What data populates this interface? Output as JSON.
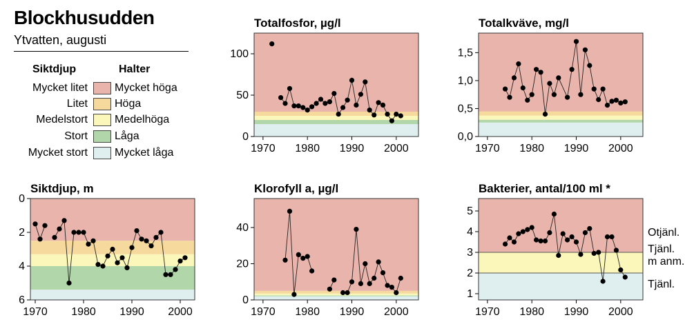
{
  "header": {
    "title": "Blockhusudden",
    "subtitle": "Ytvatten, augusti"
  },
  "legend": {
    "left_heading": "Siktdjup",
    "right_heading": "Halter",
    "rows": [
      {
        "left": "Mycket litet",
        "right": "Mycket höga",
        "color": "#e8b4ab"
      },
      {
        "left": "Litet",
        "right": "Höga",
        "color": "#f6d99c"
      },
      {
        "left": "Medelstort",
        "right": "Medelhöga",
        "color": "#fbf6b9"
      },
      {
        "left": "Stort",
        "right": "Låga",
        "color": "#b1d6a9"
      },
      {
        "left": "Mycket stort",
        "right": "Mycket låga",
        "color": "#dfeff0"
      }
    ]
  },
  "colors": {
    "very_high": "#e8b4ab",
    "high": "#f6d99c",
    "medium": "#fbf6b9",
    "low": "#b1d6a9",
    "very_low": "#dfeff0",
    "border": "#333333"
  },
  "chart_data": [
    {
      "id": "totalfosfor",
      "type": "line",
      "title": "Totalfosfor, µg/l",
      "xlim": [
        1968,
        2005
      ],
      "ylim": [
        0,
        125
      ],
      "xticks": [
        1970,
        1980,
        1990,
        2000
      ],
      "xtick_labels": [
        "1970",
        "1980",
        "1990",
        "2000"
      ],
      "yticks": [
        0,
        50,
        100
      ],
      "ytick_labels": [
        "0",
        "50",
        "100"
      ],
      "bands": [
        {
          "from": 0,
          "to": 15,
          "color": "#dfeff0"
        },
        {
          "from": 15,
          "to": 20,
          "color": "#b1d6a9"
        },
        {
          "from": 20,
          "to": 25,
          "color": "#fbf6b9"
        },
        {
          "from": 25,
          "to": 30,
          "color": "#f6d99c"
        },
        {
          "from": 30,
          "to": 125,
          "color": "#e8b4ab"
        }
      ],
      "series": [
        {
          "segments": [
            {
              "x": [
                1972
              ],
              "y": [
                112
              ]
            },
            {
              "x": [
                1974,
                1975,
                1976,
                1977,
                1978,
                1979,
                1980,
                1981,
                1982,
                1983,
                1984,
                1985,
                1986,
                1987,
                1988,
                1989,
                1990,
                1991,
                1992,
                1993,
                1994,
                1995,
                1996,
                1997,
                1998,
                1999,
                2000,
                2001
              ],
              "y": [
                47,
                40,
                58,
                37,
                37,
                35,
                32,
                36,
                40,
                45,
                40,
                42,
                52,
                27,
                35,
                44,
                68,
                38,
                51,
                66,
                32,
                26,
                41,
                38,
                27,
                19,
                27,
                25
              ]
            }
          ]
        }
      ]
    },
    {
      "id": "totalkvave",
      "type": "line",
      "title": "Totalkväve, mg/l",
      "xlim": [
        1968,
        2005
      ],
      "ylim": [
        0,
        1.85
      ],
      "xticks": [
        1970,
        1980,
        1990,
        2000
      ],
      "xtick_labels": [
        "1970",
        "1980",
        "1990",
        "2000"
      ],
      "yticks": [
        0,
        0.5,
        1.0,
        1.5
      ],
      "ytick_labels": [
        "0,0",
        "0,5",
        "1,0",
        "1,5"
      ],
      "bands": [
        {
          "from": 0,
          "to": 0.25,
          "color": "#dfeff0"
        },
        {
          "from": 0.25,
          "to": 0.3,
          "color": "#b1d6a9"
        },
        {
          "from": 0.3,
          "to": 0.375,
          "color": "#fbf6b9"
        },
        {
          "from": 0.375,
          "to": 0.45,
          "color": "#f6d99c"
        },
        {
          "from": 0.45,
          "to": 1.85,
          "color": "#e8b4ab"
        }
      ],
      "series": [
        {
          "segments": [
            {
              "x": [
                1974,
                1975,
                1976,
                1977,
                1978,
                1979,
                1980,
                1981,
                1982,
                1983,
                1984,
                1985,
                1986,
                1988,
                1989,
                1990,
                1991,
                1992,
                1993,
                1994,
                1995,
                1996,
                1997,
                1998,
                1999,
                2000,
                2001
              ],
              "y": [
                0.85,
                0.7,
                1.05,
                1.3,
                0.87,
                0.65,
                0.75,
                1.2,
                1.15,
                0.4,
                0.95,
                0.75,
                1.05,
                0.7,
                1.2,
                1.7,
                0.75,
                1.55,
                1.27,
                0.85,
                0.66,
                0.85,
                0.56,
                0.63,
                0.65,
                0.6,
                0.62
              ]
            }
          ]
        }
      ]
    },
    {
      "id": "siktdjup",
      "type": "line",
      "title": "Siktdjup, m",
      "xlim": [
        1969,
        2003
      ],
      "ylim": [
        6,
        0
      ],
      "inverted": true,
      "xticks": [
        1970,
        1980,
        1990,
        2000
      ],
      "xtick_labels": [
        "1970",
        "1980",
        "1990",
        "2000"
      ],
      "yticks": [
        0,
        2,
        4,
        6
      ],
      "ytick_labels": [
        "0",
        "2",
        "4",
        "6"
      ],
      "bands": [
        {
          "from": 0,
          "to": 2.5,
          "color": "#e8b4ab"
        },
        {
          "from": 2.5,
          "to": 3.3,
          "color": "#f6d99c"
        },
        {
          "from": 3.3,
          "to": 4.0,
          "color": "#fbf6b9"
        },
        {
          "from": 4.0,
          "to": 5.4,
          "color": "#b1d6a9"
        },
        {
          "from": 5.4,
          "to": 6,
          "color": "#dfeff0"
        }
      ],
      "series": [
        {
          "segments": [
            {
              "x": [
                1970,
                1971,
                1972
              ],
              "y": [
                1.5,
                2.4,
                1.6
              ]
            },
            {
              "x": [
                1974,
                1975,
                1976,
                1977,
                1978,
                1979,
                1980,
                1981,
                1982,
                1983,
                1984,
                1985,
                1986,
                1987,
                1988,
                1989,
                1990,
                1991,
                1992,
                1993,
                1994,
                1995,
                1996,
                1997,
                1998,
                1999,
                2000,
                2001
              ],
              "y": [
                2.3,
                1.8,
                1.3,
                5.0,
                2.0,
                2.0,
                2.0,
                2.7,
                2.5,
                3.9,
                4.0,
                3.4,
                3.0,
                3.8,
                3.5,
                4.1,
                2.9,
                1.9,
                2.4,
                2.5,
                2.8,
                2.3,
                2.0,
                4.5,
                4.5,
                4.2,
                3.7,
                3.5
              ]
            }
          ]
        }
      ]
    },
    {
      "id": "klorofyll",
      "type": "line",
      "title": "Klorofyll a, µg/l",
      "xlim": [
        1968,
        2005
      ],
      "ylim": [
        0,
        56
      ],
      "xticks": [
        1970,
        1980,
        1990,
        2000
      ],
      "xtick_labels": [
        "1970",
        "1980",
        "1990",
        "2000"
      ],
      "yticks": [
        0,
        20,
        40
      ],
      "ytick_labels": [
        "0",
        "20",
        "40"
      ],
      "bands": [
        {
          "from": 0,
          "to": 2,
          "color": "#dfeff0"
        },
        {
          "from": 2,
          "to": 2.5,
          "color": "#b1d6a9"
        },
        {
          "from": 2.5,
          "to": 3.5,
          "color": "#fbf6b9"
        },
        {
          "from": 3.5,
          "to": 5,
          "color": "#f6d99c"
        },
        {
          "from": 5,
          "to": 56,
          "color": "#e8b4ab"
        }
      ],
      "series": [
        {
          "segments": [
            {
              "x": [
                1975,
                1976,
                1977,
                1978,
                1979,
                1980,
                1981
              ],
              "y": [
                22,
                49,
                3,
                25,
                23,
                24,
                16
              ]
            },
            {
              "x": [
                1985,
                1986
              ],
              "y": [
                6,
                11
              ]
            },
            {
              "x": [
                1988,
                1989,
                1990,
                1991,
                1992,
                1993,
                1994,
                1995,
                1996,
                1997,
                1998,
                1999,
                2000,
                2001
              ],
              "y": [
                4,
                4,
                10,
                39,
                9,
                20,
                9,
                12,
                21,
                15,
                8,
                7,
                4,
                12
              ]
            }
          ]
        }
      ]
    },
    {
      "id": "bakterier",
      "type": "line",
      "title": "Bakterier, antal/100 ml *",
      "xlim": [
        1968,
        2005
      ],
      "ylim": [
        0.7,
        5.6
      ],
      "xticks": [
        1970,
        1980,
        1990,
        2000
      ],
      "xtick_labels": [
        "1970",
        "1980",
        "1990",
        "2000"
      ],
      "yticks": [
        1,
        2,
        3,
        4,
        5
      ],
      "ytick_labels": [
        "1",
        "2",
        "3",
        "4",
        "5"
      ],
      "bands": [
        {
          "from": 0.7,
          "to": 2,
          "color": "#dfeff0"
        },
        {
          "from": 2,
          "to": 3,
          "color": "#fbf6b9"
        },
        {
          "from": 3,
          "to": 5.6,
          "color": "#e8b4ab"
        }
      ],
      "band_lines": [
        2,
        3
      ],
      "side_labels": [
        {
          "text": "Otjänl.",
          "y": 4.0
        },
        {
          "text": "Tjänl.",
          "y": 3.2
        },
        {
          "text": "m anm.",
          "y": 2.6
        },
        {
          "text": "Tjänl.",
          "y": 1.5
        }
      ],
      "series": [
        {
          "segments": [
            {
              "x": [
                1974,
                1975,
                1976,
                1977,
                1978,
                1979,
                1980,
                1981,
                1982,
                1983,
                1984,
                1985,
                1986,
                1987,
                1988,
                1989,
                1990,
                1991,
                1992,
                1993,
                1994,
                1995,
                1996,
                1997,
                1998,
                1999,
                2000,
                2001
              ],
              "y": [
                3.4,
                3.7,
                3.5,
                3.9,
                4.0,
                4.1,
                4.2,
                3.6,
                3.55,
                3.55,
                3.95,
                4.85,
                2.85,
                3.9,
                3.6,
                3.75,
                3.5,
                2.9,
                3.95,
                4.15,
                2.95,
                3.0,
                1.6,
                3.75,
                3.75,
                3.1,
                2.15,
                1.8
              ]
            }
          ]
        }
      ]
    }
  ]
}
